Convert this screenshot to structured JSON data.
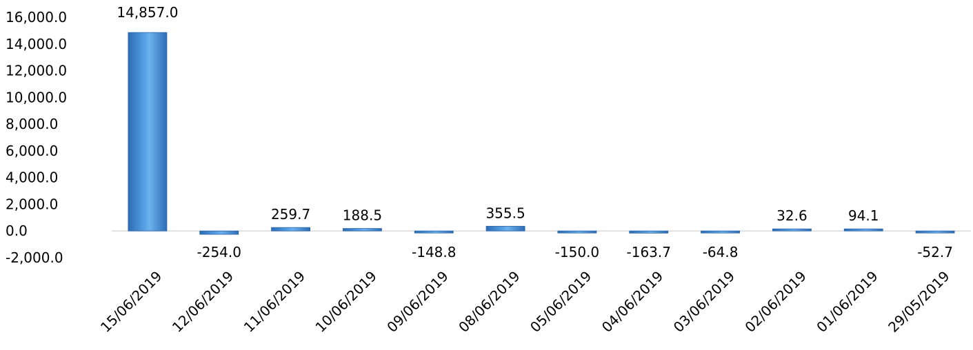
{
  "chart_data": {
    "type": "bar",
    "categories": [
      "15/06/2019",
      "12/06/2019",
      "11/06/2019",
      "10/06/2019",
      "09/06/2019",
      "08/06/2019",
      "05/06/2019",
      "04/06/2019",
      "03/06/2019",
      "02/06/2019",
      "01/06/2019",
      "29/05/2019"
    ],
    "values": [
      14857.0,
      -254.0,
      259.7,
      188.5,
      -148.8,
      355.5,
      -150.0,
      -163.7,
      -64.8,
      32.6,
      94.1,
      -52.7
    ],
    "data_labels": [
      "14,857.0",
      "-254.0",
      "259.7",
      "188.5",
      "-148.8",
      "355.5",
      "-150.0",
      "-163.7",
      "-64.8",
      "32.6",
      "94.1",
      "-52.7"
    ],
    "y_ticks": [
      16000,
      14000,
      12000,
      10000,
      8000,
      6000,
      4000,
      2000,
      0,
      -2000
    ],
    "y_tick_labels": [
      "16,000.0",
      "14,000.0",
      "12,000.0",
      "10,000.0",
      "8,000.0",
      "6,000.0",
      "4,000.0",
      "2,000.0",
      "0.0",
      "-2,000.0"
    ],
    "ylim": [
      -2000,
      16000
    ],
    "title": "",
    "xlabel": "",
    "ylabel": "",
    "grid": false,
    "legend": "none",
    "bar_color": "#4a90d9",
    "bar_color_light": "#8ec6f2",
    "bar_color_dark": "#2d6db5"
  }
}
